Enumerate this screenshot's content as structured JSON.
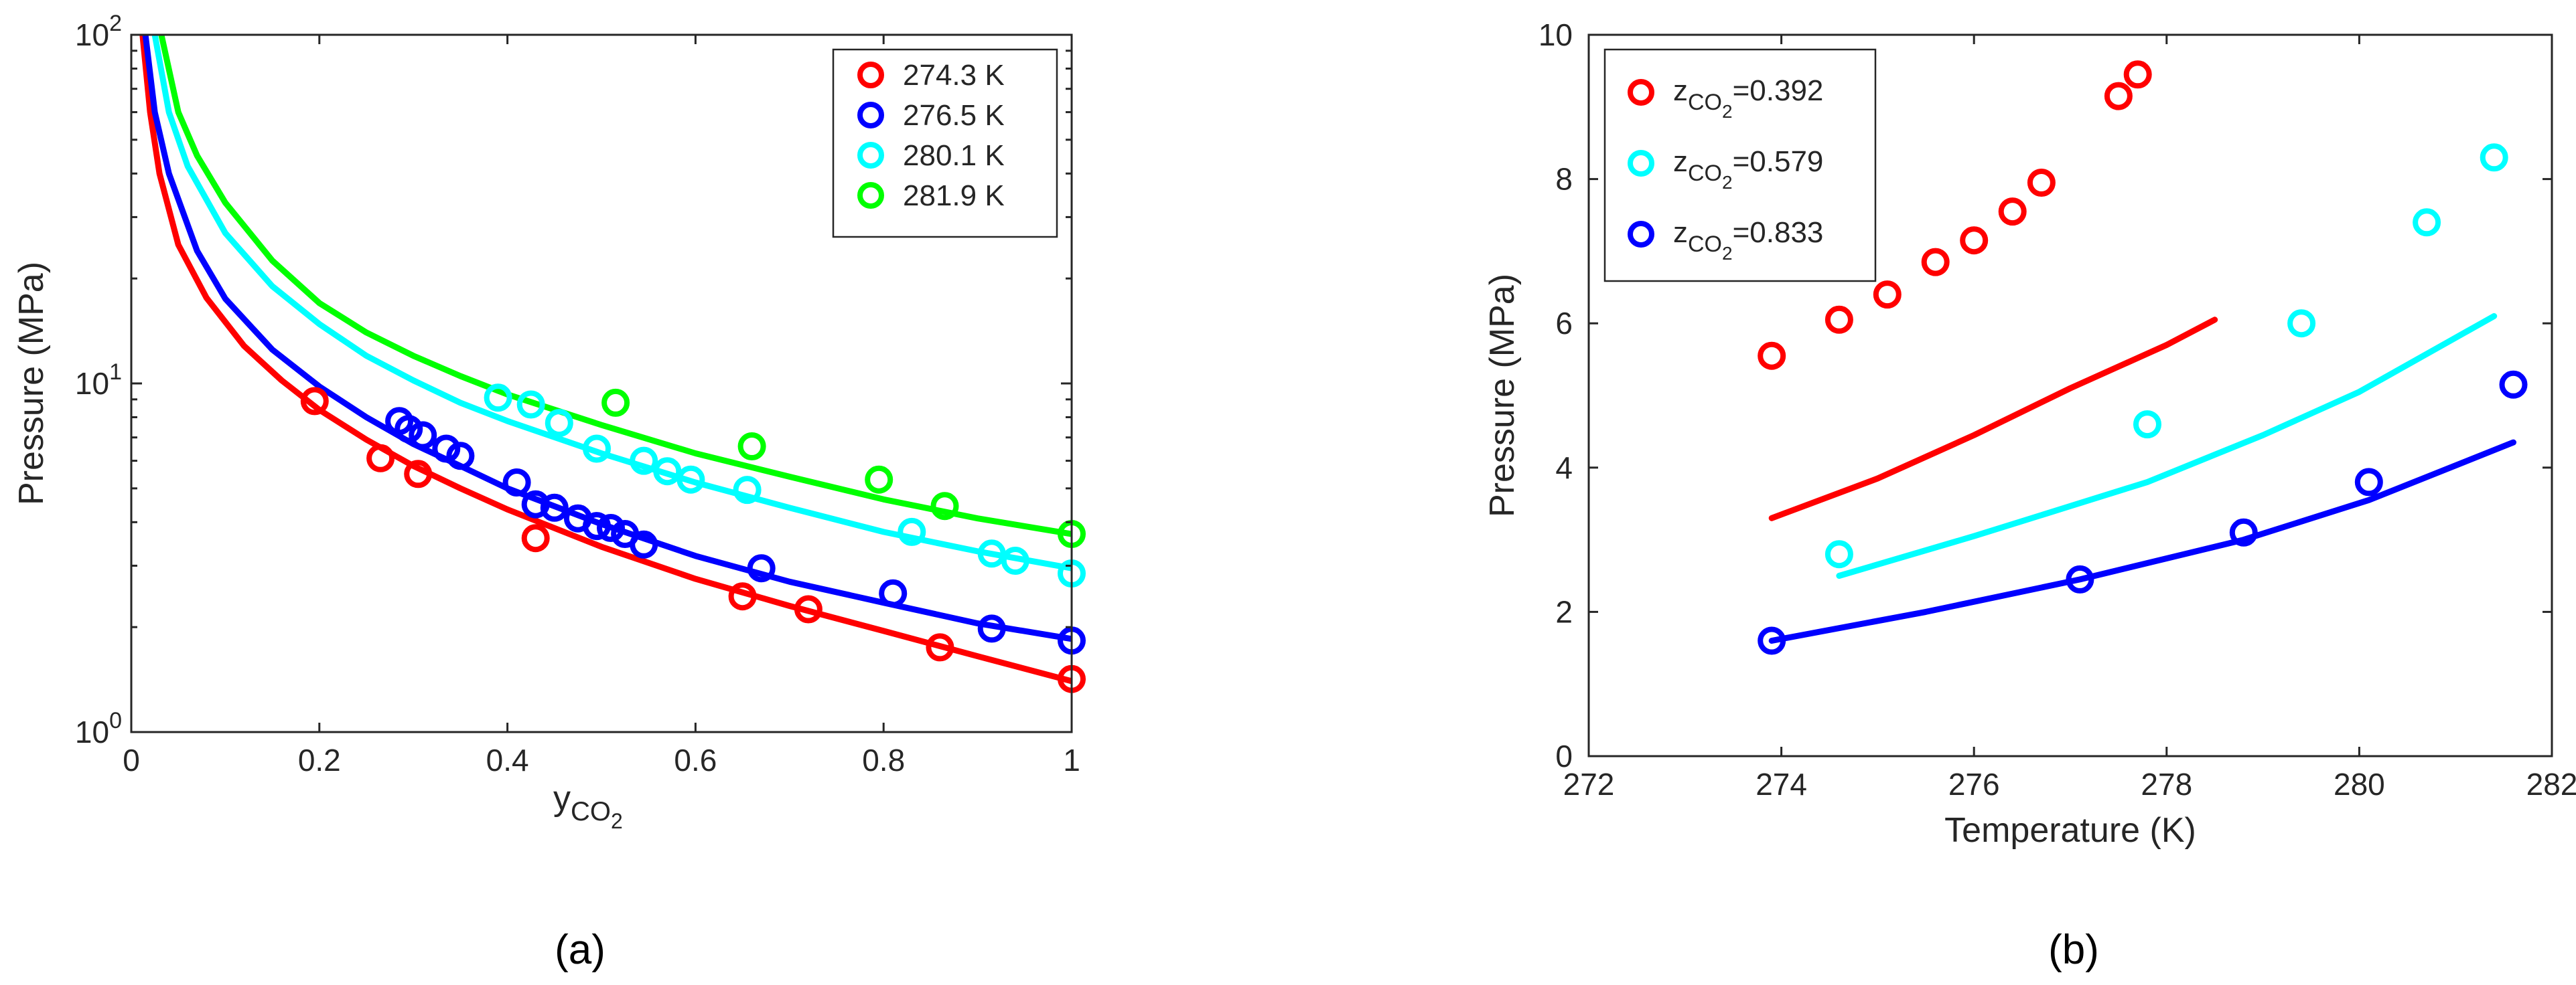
{
  "figure": {
    "panels": [
      {
        "id": "a",
        "caption": "(a)"
      },
      {
        "id": "b",
        "caption": "(b)"
      }
    ]
  },
  "chart_data": [
    {
      "id": "a",
      "type": "scatter",
      "title": "",
      "xlabel": "y",
      "xlabel_sub": "CO",
      "xlabel_subsub": "2",
      "ylabel": "Pressure (MPa)",
      "xscale": "linear",
      "yscale": "log",
      "xlim": [
        0,
        1
      ],
      "ylim": [
        1,
        100
      ],
      "xticks": [
        0,
        0.2,
        0.4,
        0.6,
        0.8,
        1
      ],
      "xtick_labels": [
        "0",
        "0.2",
        "0.4",
        "0.6",
        "0.8",
        "1"
      ],
      "yticks": [
        {
          "value": 1,
          "base": "10",
          "exp": "0"
        },
        {
          "value": 10,
          "base": "10",
          "exp": "1"
        },
        {
          "value": 100,
          "base": "10",
          "exp": "2"
        }
      ],
      "legend_position": "top-right",
      "series": [
        {
          "name": "274.3 K",
          "color": "#ff0000",
          "points": [
            [
              0.195,
              8.9
            ],
            [
              0.265,
              6.1
            ],
            [
              0.305,
              5.5
            ],
            [
              0.43,
              3.6
            ],
            [
              0.65,
              2.45
            ],
            [
              0.72,
              2.25
            ],
            [
              0.86,
              1.75
            ],
            [
              1.0,
              1.42
            ]
          ],
          "curve": [
            [
              0.012,
              100
            ],
            [
              0.02,
              60
            ],
            [
              0.03,
              40
            ],
            [
              0.05,
              25
            ],
            [
              0.08,
              17.6
            ],
            [
              0.12,
              12.8
            ],
            [
              0.16,
              10.2
            ],
            [
              0.2,
              8.4
            ],
            [
              0.25,
              6.9
            ],
            [
              0.3,
              5.8
            ],
            [
              0.35,
              5.0
            ],
            [
              0.4,
              4.35
            ],
            [
              0.5,
              3.4
            ],
            [
              0.6,
              2.75
            ],
            [
              0.7,
              2.3
            ],
            [
              0.8,
              1.95
            ],
            [
              0.9,
              1.65
            ],
            [
              1.0,
              1.4
            ]
          ]
        },
        {
          "name": "276.5 K",
          "color": "#0000ff",
          "points": [
            [
              0.285,
              7.8
            ],
            [
              0.295,
              7.4
            ],
            [
              0.31,
              7.1
            ],
            [
              0.335,
              6.5
            ],
            [
              0.35,
              6.2
            ],
            [
              0.41,
              5.2
            ],
            [
              0.43,
              4.5
            ],
            [
              0.45,
              4.4
            ],
            [
              0.475,
              4.1
            ],
            [
              0.495,
              3.9
            ],
            [
              0.51,
              3.85
            ],
            [
              0.525,
              3.7
            ],
            [
              0.545,
              3.45
            ],
            [
              0.67,
              2.95
            ],
            [
              0.81,
              2.5
            ],
            [
              0.915,
              1.98
            ],
            [
              1.0,
              1.83
            ]
          ],
          "curve": [
            [
              0.015,
              100
            ],
            [
              0.025,
              60
            ],
            [
              0.04,
              40
            ],
            [
              0.07,
              24
            ],
            [
              0.1,
              17.5
            ],
            [
              0.15,
              12.5
            ],
            [
              0.2,
              9.8
            ],
            [
              0.25,
              8.0
            ],
            [
              0.3,
              6.7
            ],
            [
              0.35,
              5.8
            ],
            [
              0.4,
              5.0
            ],
            [
              0.5,
              3.95
            ],
            [
              0.6,
              3.2
            ],
            [
              0.7,
              2.7
            ],
            [
              0.8,
              2.35
            ],
            [
              0.9,
              2.05
            ],
            [
              1.0,
              1.85
            ]
          ]
        },
        {
          "name": "280.1 K",
          "color": "#00ffff",
          "points": [
            [
              0.39,
              9.1
            ],
            [
              0.425,
              8.7
            ],
            [
              0.455,
              7.7
            ],
            [
              0.495,
              6.5
            ],
            [
              0.545,
              6.0
            ],
            [
              0.57,
              5.6
            ],
            [
              0.595,
              5.3
            ],
            [
              0.655,
              4.95
            ],
            [
              0.83,
              3.75
            ],
            [
              0.915,
              3.25
            ],
            [
              0.94,
              3.1
            ],
            [
              1.0,
              2.85
            ]
          ],
          "curve": [
            [
              0.025,
              100
            ],
            [
              0.04,
              60
            ],
            [
              0.06,
              42
            ],
            [
              0.1,
              27
            ],
            [
              0.15,
              19
            ],
            [
              0.2,
              14.8
            ],
            [
              0.25,
              12.0
            ],
            [
              0.3,
              10.2
            ],
            [
              0.35,
              8.8
            ],
            [
              0.4,
              7.8
            ],
            [
              0.5,
              6.3
            ],
            [
              0.6,
              5.2
            ],
            [
              0.7,
              4.4
            ],
            [
              0.8,
              3.75
            ],
            [
              0.9,
              3.3
            ],
            [
              1.0,
              2.95
            ]
          ]
        },
        {
          "name": "281.9 K",
          "color": "#00ff00",
          "points": [
            [
              0.515,
              8.8
            ],
            [
              0.66,
              6.6
            ],
            [
              0.795,
              5.3
            ],
            [
              0.865,
              4.45
            ],
            [
              1.0,
              3.7
            ]
          ],
          "curve": [
            [
              0.032,
              100
            ],
            [
              0.05,
              60
            ],
            [
              0.07,
              45
            ],
            [
              0.1,
              33
            ],
            [
              0.15,
              22.5
            ],
            [
              0.2,
              17.0
            ],
            [
              0.25,
              14.0
            ],
            [
              0.3,
              12.0
            ],
            [
              0.35,
              10.5
            ],
            [
              0.4,
              9.3
            ],
            [
              0.5,
              7.6
            ],
            [
              0.6,
              6.3
            ],
            [
              0.7,
              5.4
            ],
            [
              0.8,
              4.65
            ],
            [
              0.9,
              4.1
            ],
            [
              1.0,
              3.7
            ]
          ]
        }
      ]
    },
    {
      "id": "b",
      "type": "scatter",
      "title": "",
      "xlabel": "Temperature (K)",
      "ylabel": "Pressure (MPa)",
      "xscale": "linear",
      "yscale": "linear",
      "xlim": [
        272,
        282
      ],
      "ylim": [
        0,
        10
      ],
      "xticks": [
        272,
        274,
        276,
        278,
        280,
        282
      ],
      "xtick_labels": [
        "272",
        "274",
        "276",
        "278",
        "280",
        "282"
      ],
      "yticks": [
        0,
        2,
        4,
        6,
        8,
        10
      ],
      "ytick_labels": [
        "0",
        "2",
        "4",
        "6",
        "8",
        "10"
      ],
      "legend_position": "top-left",
      "series": [
        {
          "name": "zCO2=0.392",
          "label_main": "z",
          "label_sub": "CO",
          "label_subsub": "2",
          "label_value": "=0.392",
          "color": "#ff0000",
          "points": [
            [
              273.9,
              5.55
            ],
            [
              274.6,
              6.05
            ],
            [
              275.1,
              6.4
            ],
            [
              275.6,
              6.85
            ],
            [
              276.0,
              7.15
            ],
            [
              276.4,
              7.55
            ],
            [
              276.7,
              7.95
            ],
            [
              277.5,
              9.15
            ],
            [
              277.7,
              9.45
            ]
          ],
          "curve": [
            [
              273.9,
              3.3
            ],
            [
              275.0,
              3.85
            ],
            [
              276.0,
              4.45
            ],
            [
              277.0,
              5.1
            ],
            [
              278.0,
              5.7
            ],
            [
              278.5,
              6.05
            ]
          ]
        },
        {
          "name": "zCO2=0.579",
          "label_main": "z",
          "label_sub": "CO",
          "label_subsub": "2",
          "label_value": "=0.579",
          "color": "#00ffff",
          "points": [
            [
              274.6,
              2.8
            ],
            [
              277.8,
              4.6
            ],
            [
              279.4,
              6.0
            ],
            [
              280.7,
              7.4
            ],
            [
              281.4,
              8.3
            ]
          ],
          "curve": [
            [
              274.6,
              2.5
            ],
            [
              276.0,
              3.05
            ],
            [
              277.8,
              3.8
            ],
            [
              279.0,
              4.45
            ],
            [
              280.0,
              5.05
            ],
            [
              281.4,
              6.1
            ]
          ]
        },
        {
          "name": "zCO2=0.833",
          "label_main": "z",
          "label_sub": "CO",
          "label_subsub": "2",
          "label_value": "=0.833",
          "color": "#0000ff",
          "points": [
            [
              273.9,
              1.6
            ],
            [
              277.1,
              2.45
            ],
            [
              278.8,
              3.1
            ],
            [
              280.1,
              3.8
            ],
            [
              281.6,
              5.15
            ]
          ],
          "curve": [
            [
              273.9,
              1.6
            ],
            [
              275.5,
              2.0
            ],
            [
              277.1,
              2.45
            ],
            [
              278.8,
              3.0
            ],
            [
              280.1,
              3.55
            ],
            [
              281.6,
              4.35
            ]
          ]
        }
      ]
    }
  ]
}
